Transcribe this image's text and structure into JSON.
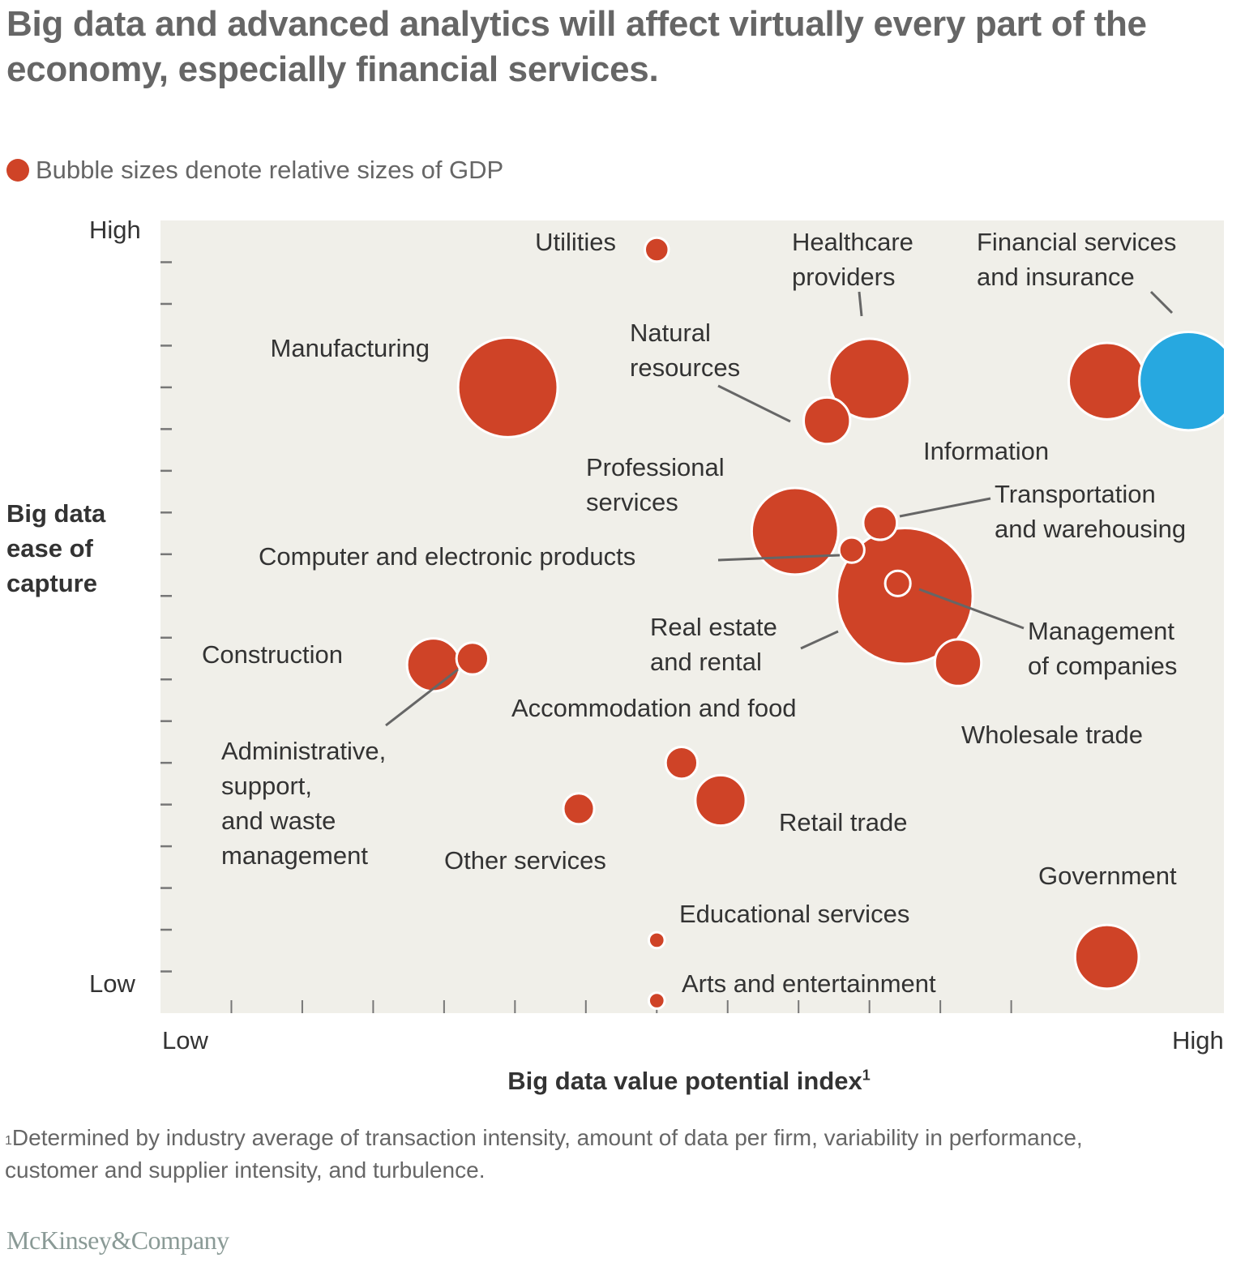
{
  "header": {
    "title": "Big data and advanced analytics will affect virtually every part of the economy, especially financial services.",
    "legend_text": "Bubble sizes denote relative sizes of GDP"
  },
  "footer": {
    "footnote_marker": "1",
    "footnote": "Determined by industry average of transaction intensity, amount of data per firm, variability in performance, customer and supplier intensity, and turbulence.",
    "brand": "McKinsey&Company"
  },
  "colors": {
    "bubble": "#cf4327",
    "highlight": "#27a8e0",
    "plot_bg": "#f0efe9",
    "leader": "#666666"
  },
  "chart_data": {
    "type": "scatter",
    "subtype": "bubble",
    "title": "Big data and advanced analytics will affect virtually every part of the economy, especially financial services.",
    "xlabel": "Big data value potential index",
    "xlabel_sup": "1",
    "ylabel": "Big data ease of capture",
    "x_tick_labels": {
      "low": "Low",
      "high": "High"
    },
    "y_tick_labels": {
      "low": "Low",
      "high": "High"
    },
    "xlim": [
      0,
      15
    ],
    "ylim": [
      0,
      19
    ],
    "x_ticks": [
      1,
      2,
      3,
      4,
      5,
      6,
      7,
      8,
      9,
      10,
      11,
      12
    ],
    "y_ticks": [
      1,
      2,
      3,
      4,
      5,
      6,
      7,
      8,
      9,
      10,
      11,
      12,
      13,
      14,
      15,
      16,
      17,
      18
    ],
    "size_meaning": "relative GDP",
    "series": [
      {
        "name": "Utilities",
        "x": 7.0,
        "y": 18.3,
        "size": 0.45,
        "highlight": false,
        "label": [
          "Utilities"
        ],
        "label_pos": "left"
      },
      {
        "name": "Manufacturing",
        "x": 4.9,
        "y": 15.0,
        "size": 7.8,
        "highlight": false,
        "label": [
          "Manufacturing"
        ],
        "label_pos": "left"
      },
      {
        "name": "Healthcare providers",
        "x": 10.0,
        "y": 15.2,
        "size": 5.1,
        "highlight": false,
        "label": [
          "Healthcare",
          "providers"
        ],
        "label_pos": "above-line"
      },
      {
        "name": "Natural resources",
        "x": 9.4,
        "y": 14.2,
        "size": 1.7,
        "highlight": false,
        "label": [
          "Natural",
          "resources"
        ],
        "label_pos": "left-line"
      },
      {
        "name": "Information",
        "x": 13.35,
        "y": 15.15,
        "size": 4.6,
        "highlight": false,
        "label": [
          "Information"
        ],
        "label_pos": "below-left"
      },
      {
        "name": "Financial services and insurance",
        "x": 14.5,
        "y": 15.15,
        "size": 7.6,
        "highlight": true,
        "label": [
          "Financial services",
          "and insurance"
        ],
        "label_pos": "above-line"
      },
      {
        "name": "Professional services",
        "x": 8.95,
        "y": 11.55,
        "size": 5.9,
        "highlight": false,
        "label": [
          "Professional",
          "services"
        ],
        "label_pos": "left"
      },
      {
        "name": "Real estate and rental",
        "x": 10.5,
        "y": 10.0,
        "size": 14.5,
        "highlight": false,
        "label": [
          "Real estate",
          "and rental"
        ],
        "label_pos": "left-line"
      },
      {
        "name": "Transportation and warehousing",
        "x": 10.15,
        "y": 11.75,
        "size": 0.9,
        "highlight": false,
        "label": [
          "Transportation",
          "and warehousing"
        ],
        "label_pos": "right-line"
      },
      {
        "name": "Computer and electronic products",
        "x": 9.75,
        "y": 11.1,
        "size": 0.5,
        "highlight": false,
        "label": [
          "Computer and electronic products"
        ],
        "label_pos": "left-line"
      },
      {
        "name": "Management of companies",
        "x": 10.4,
        "y": 10.3,
        "size": 0.5,
        "highlight": false,
        "label": [
          "Management",
          "of companies"
        ],
        "label_pos": "right-line"
      },
      {
        "name": "Wholesale trade",
        "x": 11.25,
        "y": 8.4,
        "size": 1.7,
        "highlight": false,
        "label": [
          "Wholesale trade"
        ],
        "label_pos": "below"
      },
      {
        "name": "Construction",
        "x": 3.85,
        "y": 8.35,
        "size": 2.2,
        "highlight": false,
        "label": [
          "Construction"
        ],
        "label_pos": "left"
      },
      {
        "name": "Administrative, support, and waste management",
        "x": 4.4,
        "y": 8.5,
        "size": 0.8,
        "highlight": false,
        "label": [
          "Administrative,",
          "support,",
          "and waste",
          "management"
        ],
        "label_pos": "below-line"
      },
      {
        "name": "Accommodation and food",
        "x": 7.35,
        "y": 6.0,
        "size": 0.8,
        "highlight": false,
        "label": [
          "Accommodation and food"
        ],
        "label_pos": "above"
      },
      {
        "name": "Retail trade",
        "x": 7.9,
        "y": 5.1,
        "size": 2.0,
        "highlight": false,
        "label": [
          "Retail trade"
        ],
        "label_pos": "right"
      },
      {
        "name": "Other services",
        "x": 5.9,
        "y": 4.9,
        "size": 0.75,
        "highlight": false,
        "label": [
          "Other services"
        ],
        "label_pos": "below"
      },
      {
        "name": "Educational services",
        "x": 7.0,
        "y": 1.75,
        "size": 0.2,
        "highlight": false,
        "label": [
          "Educational services"
        ],
        "label_pos": "right"
      },
      {
        "name": "Arts and entertainment",
        "x": 7.0,
        "y": 0.3,
        "size": 0.2,
        "highlight": false,
        "label": [
          "Arts and entertainment"
        ],
        "label_pos": "right"
      },
      {
        "name": "Government",
        "x": 13.35,
        "y": 1.35,
        "size": 3.2,
        "highlight": false,
        "label": [
          "Government"
        ],
        "label_pos": "above"
      }
    ]
  }
}
